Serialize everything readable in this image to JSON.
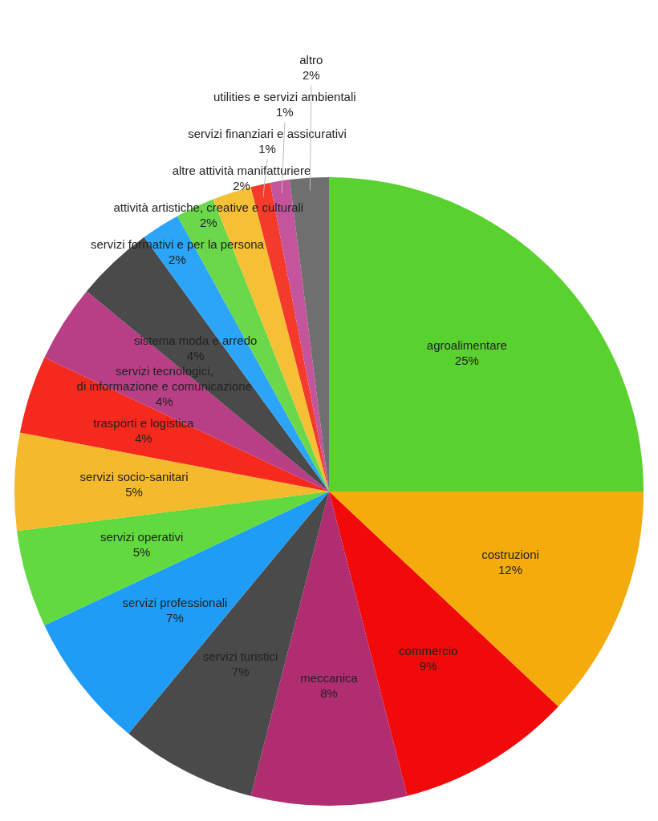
{
  "chart_data": {
    "type": "pie",
    "categories": [
      "agroalimentare",
      "costruzioni",
      "commercio",
      "meccanica",
      "servizi turistici",
      "servizi professionali",
      "servizi operativi",
      "servizi socio-sanitari",
      "trasporti e logistica",
      "servizi tecnologici,\ndi informazione e comunicazione",
      "sistema moda e arredo",
      "servizi formativi e per la persona",
      "attività artistiche, creative e culturali",
      "altre attività manifatturiere",
      "servizi finanziari e assicurativi",
      "utilities e servizi ambientali",
      "altro"
    ],
    "values": [
      25,
      12,
      9,
      8,
      7,
      7,
      5,
      5,
      4,
      4,
      4,
      2,
      2,
      2,
      1,
      1,
      2
    ],
    "colors": [
      "#59d12f",
      "#f4ab0c",
      "#f00a0a",
      "#b02d72",
      "#4a4a4a",
      "#1f9cf5",
      "#62d93f",
      "#f4b92c",
      "#f5291e",
      "#b83f86",
      "#4a4a4a",
      "#2aa5f7",
      "#6ad84a",
      "#f6c034",
      "#f43a2a",
      "#c4549c",
      "#6f6f6f"
    ],
    "value_labels": [
      "25%",
      "12%",
      "9%",
      "8%",
      "7%",
      "7%",
      "5%",
      "5%",
      "4%",
      "4%",
      "4%",
      "2%",
      "2%",
      "2%",
      "1%",
      "1%",
      "2%"
    ]
  }
}
